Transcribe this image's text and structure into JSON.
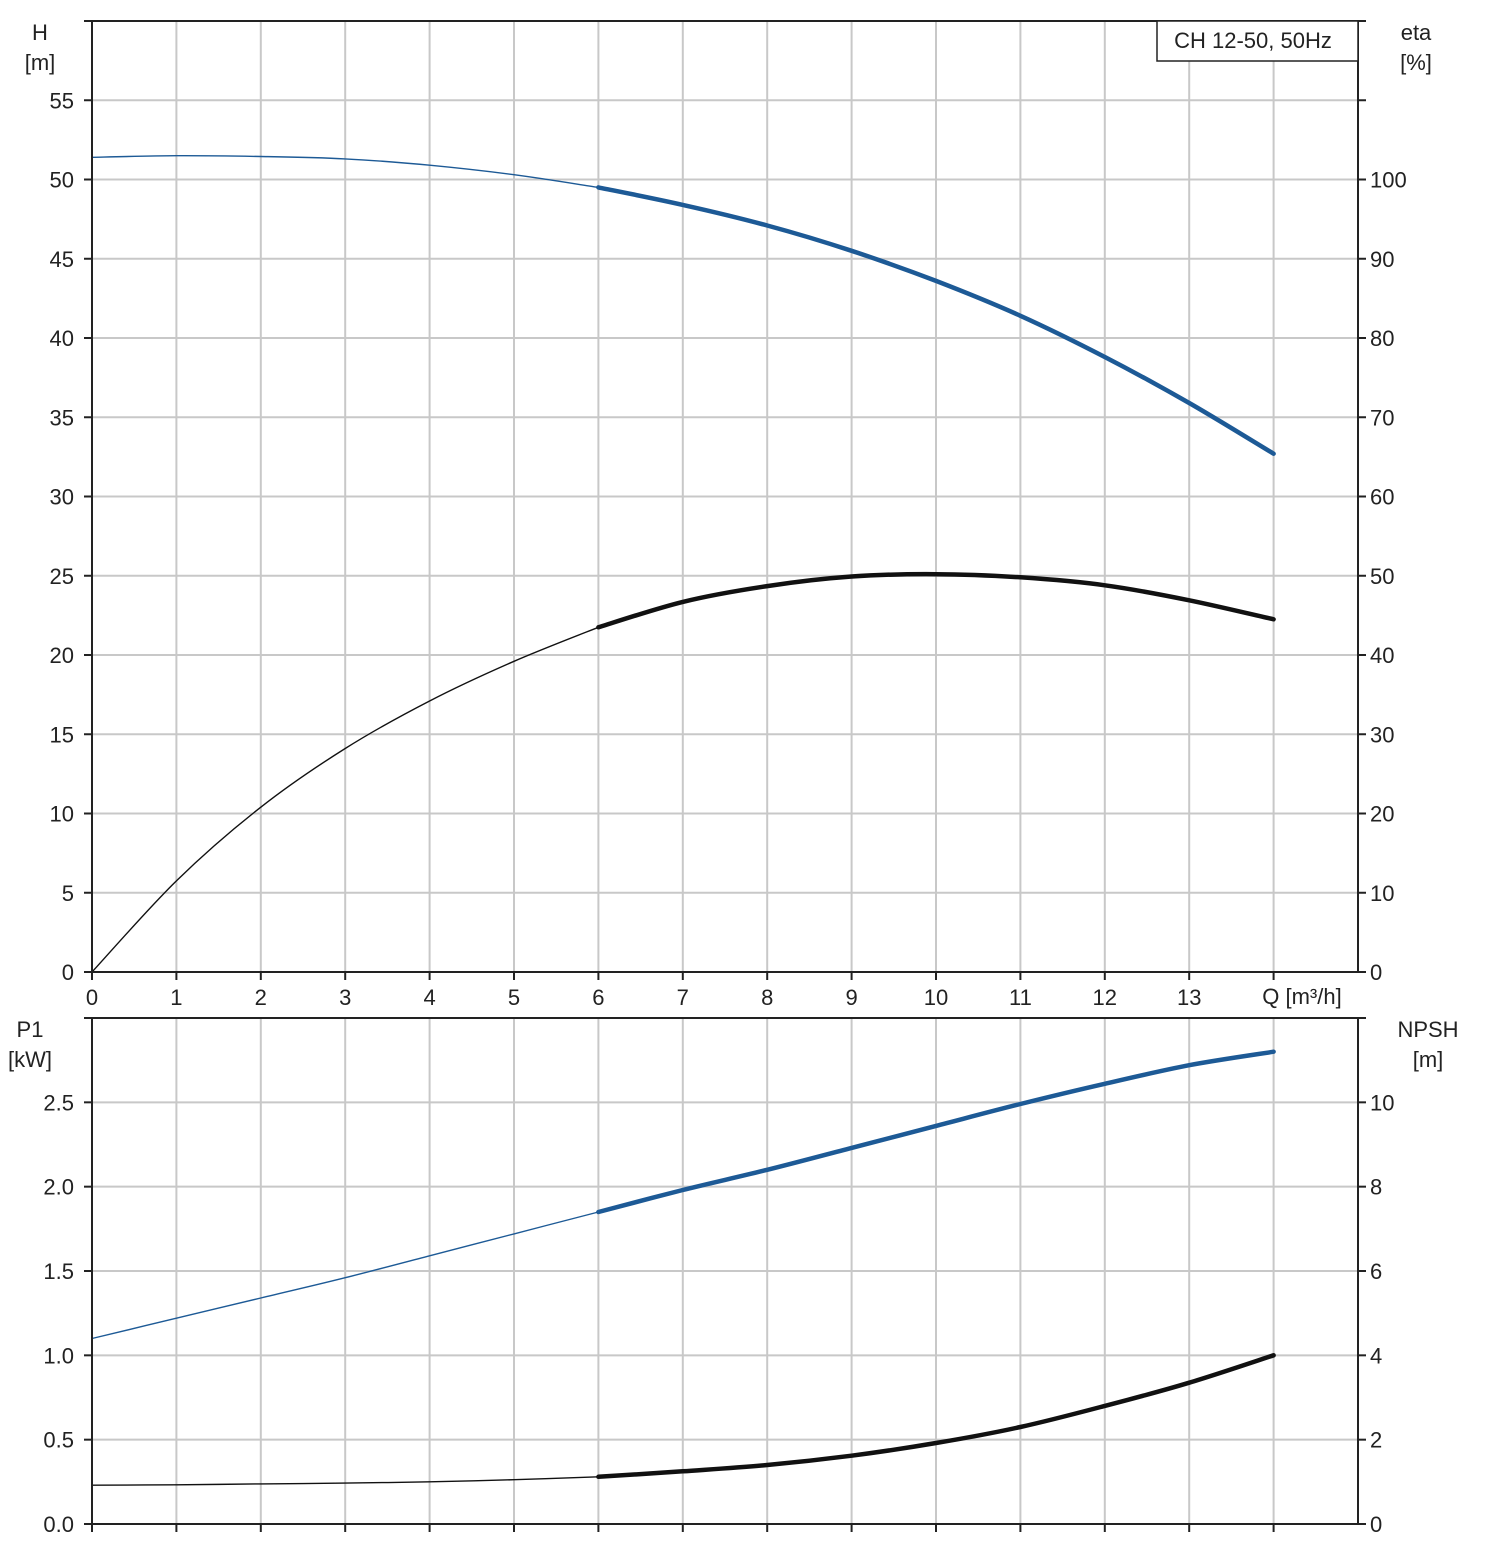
{
  "chart_data": [
    {
      "type": "line",
      "title": "CH 12-50, 50Hz",
      "xlabel": "Q [m³/h]",
      "x_ticks": [
        0,
        1,
        2,
        3,
        4,
        5,
        6,
        7,
        8,
        9,
        10,
        11,
        12,
        13
      ],
      "xlim": [
        0,
        15
      ],
      "left_axis": {
        "label_line1": "H",
        "label_line2": "[m]",
        "range": [
          0,
          60
        ],
        "ticks": [
          0,
          5,
          10,
          15,
          20,
          25,
          30,
          35,
          40,
          45,
          50,
          55
        ]
      },
      "right_axis": {
        "label_line1": "eta",
        "label_line2": "[%]",
        "range": [
          0,
          120
        ],
        "ticks": [
          0,
          10,
          20,
          30,
          40,
          50,
          60,
          70,
          80,
          90,
          100
        ]
      },
      "grid": true,
      "series": [
        {
          "name": "H",
          "axis": "left",
          "color": "#1d5a96",
          "x": [
            0,
            1,
            2,
            3,
            4,
            5,
            6,
            7,
            8,
            9,
            10,
            11,
            12,
            13,
            14
          ],
          "y": [
            51.4,
            51.5,
            51.45,
            51.3,
            50.9,
            50.3,
            49.5,
            48.4,
            47.1,
            45.5,
            43.6,
            41.4,
            38.8,
            35.9,
            32.7
          ],
          "bold_from_x": 6
        },
        {
          "name": "eta",
          "axis": "right",
          "color": "#111111",
          "x": [
            0,
            1,
            2,
            3,
            4,
            5,
            6,
            7,
            8,
            9,
            10,
            11,
            12,
            13,
            14
          ],
          "y": [
            0,
            11.5,
            20.8,
            28.2,
            34.2,
            39.2,
            43.5,
            46.7,
            48.7,
            49.9,
            50.2,
            49.8,
            48.8,
            46.9,
            44.5
          ],
          "bold_from_x": 6
        }
      ]
    },
    {
      "type": "line",
      "xlabel": "",
      "x_ticks": [],
      "xlim": [
        0,
        15
      ],
      "left_axis": {
        "label_line1": "P1",
        "label_line2": "[kW]",
        "range": [
          0,
          3.0
        ],
        "ticks": [
          "0.0",
          "0.5",
          "1.0",
          "1.5",
          "2.0",
          "2.5"
        ]
      },
      "right_axis": {
        "label_line1": "NPSH",
        "label_line2": "[m]",
        "range": [
          0,
          12
        ],
        "ticks": [
          0,
          2,
          4,
          6,
          8,
          10
        ]
      },
      "grid": true,
      "series": [
        {
          "name": "P1",
          "axis": "left",
          "color": "#1d5a96",
          "x": [
            0,
            1,
            2,
            3,
            4,
            5,
            6,
            7,
            8,
            9,
            10,
            11,
            12,
            13,
            14
          ],
          "y": [
            1.1,
            1.22,
            1.34,
            1.46,
            1.59,
            1.72,
            1.85,
            1.98,
            2.1,
            2.23,
            2.36,
            2.49,
            2.61,
            2.72,
            2.8
          ],
          "bold_from_x": 6
        },
        {
          "name": "NPSH",
          "axis": "right",
          "color": "#111111",
          "x": [
            0,
            1,
            2,
            3,
            4,
            5,
            6,
            7,
            8,
            9,
            10,
            11,
            12,
            13,
            14
          ],
          "y": [
            0.92,
            0.93,
            0.95,
            0.97,
            1.0,
            1.05,
            1.12,
            1.25,
            1.4,
            1.62,
            1.92,
            2.3,
            2.8,
            3.35,
            4.0
          ],
          "bold_from_x": 6
        }
      ]
    }
  ]
}
